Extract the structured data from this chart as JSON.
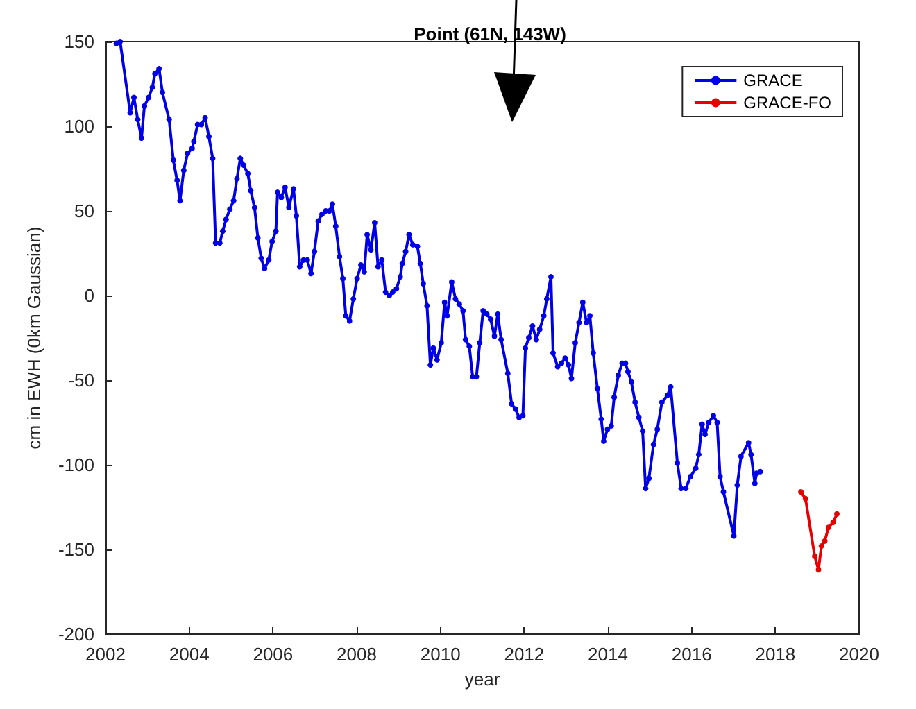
{
  "chart_data": {
    "type": "line",
    "title": "Point (61N, 143W)",
    "xlabel": "year",
    "ylabel": "cm in EWH (0km Gaussian)",
    "xlim": [
      2002,
      2020
    ],
    "xticks": [
      2002,
      2004,
      2006,
      2008,
      2010,
      2012,
      2014,
      2016,
      2018,
      2020
    ],
    "ylim": [
      -200,
      150
    ],
    "yticks": [
      -200,
      -150,
      -100,
      -50,
      0,
      50,
      100,
      150
    ],
    "grid": false,
    "legend": "top right",
    "marker": "circle",
    "line_style": "solid",
    "series": [
      {
        "name": "GRACE",
        "color": "#0000e6",
        "x": [
          2002.26,
          2002.35,
          2002.59,
          2002.68,
          2002.77,
          2002.86,
          2002.93,
          2003.03,
          2003.12,
          2003.18,
          2003.28,
          2003.36,
          2003.52,
          2003.62,
          2003.71,
          2003.78,
          2003.87,
          2003.96,
          2004.07,
          2004.11,
          2004.2,
          2004.29,
          2004.38,
          2004.47,
          2004.56,
          2004.63,
          2004.73,
          2004.8,
          2004.88,
          2004.97,
          2005.06,
          2005.14,
          2005.22,
          2005.3,
          2005.4,
          2005.47,
          2005.56,
          2005.64,
          2005.72,
          2005.8,
          2005.9,
          2005.98,
          2006.07,
          2006.11,
          2006.2,
          2006.29,
          2006.38,
          2006.49,
          2006.56,
          2006.64,
          2006.73,
          2006.82,
          2006.91,
          2006.99,
          2007.08,
          2007.17,
          2007.26,
          2007.35,
          2007.42,
          2007.5,
          2007.59,
          2007.67,
          2007.74,
          2007.83,
          2007.92,
          2008.01,
          2008.1,
          2008.18,
          2008.25,
          2008.34,
          2008.43,
          2008.51,
          2008.6,
          2008.69,
          2008.78,
          2008.86,
          2008.95,
          2009.04,
          2009.09,
          2009.17,
          2009.25,
          2009.34,
          2009.45,
          2009.52,
          2009.59,
          2009.68,
          2009.76,
          2009.83,
          2009.92,
          2010.02,
          2010.1,
          2010.16,
          2010.27,
          2010.36,
          2010.45,
          2010.54,
          2010.6,
          2010.69,
          2010.77,
          2010.86,
          2010.94,
          2011.02,
          2011.11,
          2011.2,
          2011.29,
          2011.37,
          2011.45,
          2011.61,
          2011.7,
          2011.79,
          2011.88,
          2011.97,
          2012.03,
          2012.11,
          2012.2,
          2012.29,
          2012.37,
          2012.47,
          2012.54,
          2012.64,
          2012.69,
          2012.8,
          2012.89,
          2012.98,
          2013.06,
          2013.13,
          2013.22,
          2013.31,
          2013.4,
          2013.49,
          2013.57,
          2013.65,
          2013.75,
          2013.84,
          2013.9,
          2013.99,
          2014.08,
          2014.15,
          2014.25,
          2014.34,
          2014.42,
          2014.48,
          2014.56,
          2014.65,
          2014.74,
          2014.83,
          2014.9,
          2014.98,
          2015.09,
          2015.18,
          2015.29,
          2015.42,
          2015.5,
          2015.66,
          2015.75,
          2015.86,
          2015.97,
          2016.1,
          2016.17,
          2016.25,
          2016.32,
          2016.41,
          2016.52,
          2016.61,
          2016.68,
          2016.76,
          2017.01,
          2017.09,
          2017.18,
          2017.36,
          2017.42,
          2017.51,
          2017.55,
          2017.64
        ],
        "values": [
          149,
          150,
          108,
          117,
          104,
          93,
          112,
          117,
          123,
          131,
          134,
          120,
          104,
          80,
          68,
          56,
          74,
          84,
          87,
          91,
          101,
          101,
          105,
          94,
          81,
          31,
          31,
          38,
          45,
          51,
          56,
          69,
          81,
          77,
          72,
          62,
          52,
          34,
          22,
          16,
          21,
          32,
          38,
          61,
          58,
          64,
          52,
          63,
          47,
          17,
          21,
          21,
          13,
          26,
          44,
          48,
          50,
          50,
          54,
          41,
          23,
          10,
          -12,
          -15,
          -2,
          10,
          18,
          14,
          36,
          27,
          43,
          17,
          21,
          2,
          0,
          2,
          4,
          11,
          19,
          26,
          36,
          30,
          29,
          19,
          7,
          -6,
          -41,
          -31,
          -38,
          -28,
          -4,
          -12,
          8,
          -2,
          -5,
          -9,
          -26,
          -30,
          -48,
          -48,
          -28,
          -9,
          -11,
          -14,
          -24,
          -11,
          -26,
          -46,
          -64,
          -67,
          -72,
          -71,
          -31,
          -25,
          -18,
          -26,
          -20,
          -12,
          -2,
          11,
          -34,
          -42,
          -40,
          -37,
          -41,
          -49,
          -28,
          -16,
          -4,
          -16,
          -12,
          -34,
          -55,
          -73,
          -86,
          -79,
          -77,
          -60,
          -47,
          -40,
          -40,
          -45,
          -51,
          -63,
          -72,
          -80,
          -114,
          -108,
          -88,
          -79,
          -63,
          -59,
          -54,
          -99,
          -114,
          -114,
          -107,
          -102,
          -94,
          -76,
          -82,
          -75,
          -71,
          -75,
          -107,
          -116,
          -142,
          -112,
          -95,
          -87,
          -94,
          -111,
          -105,
          -104
        ]
      },
      {
        "name": "GRACE-FO",
        "color": "#e60000",
        "x": [
          2018.61,
          2018.72,
          2018.94,
          2019.03,
          2019.1,
          2019.18,
          2019.27,
          2019.38,
          2019.47
        ],
        "values": [
          -116,
          -120,
          -154,
          -162,
          -148,
          -145,
          -137,
          -134,
          -129
        ]
      }
    ]
  }
}
